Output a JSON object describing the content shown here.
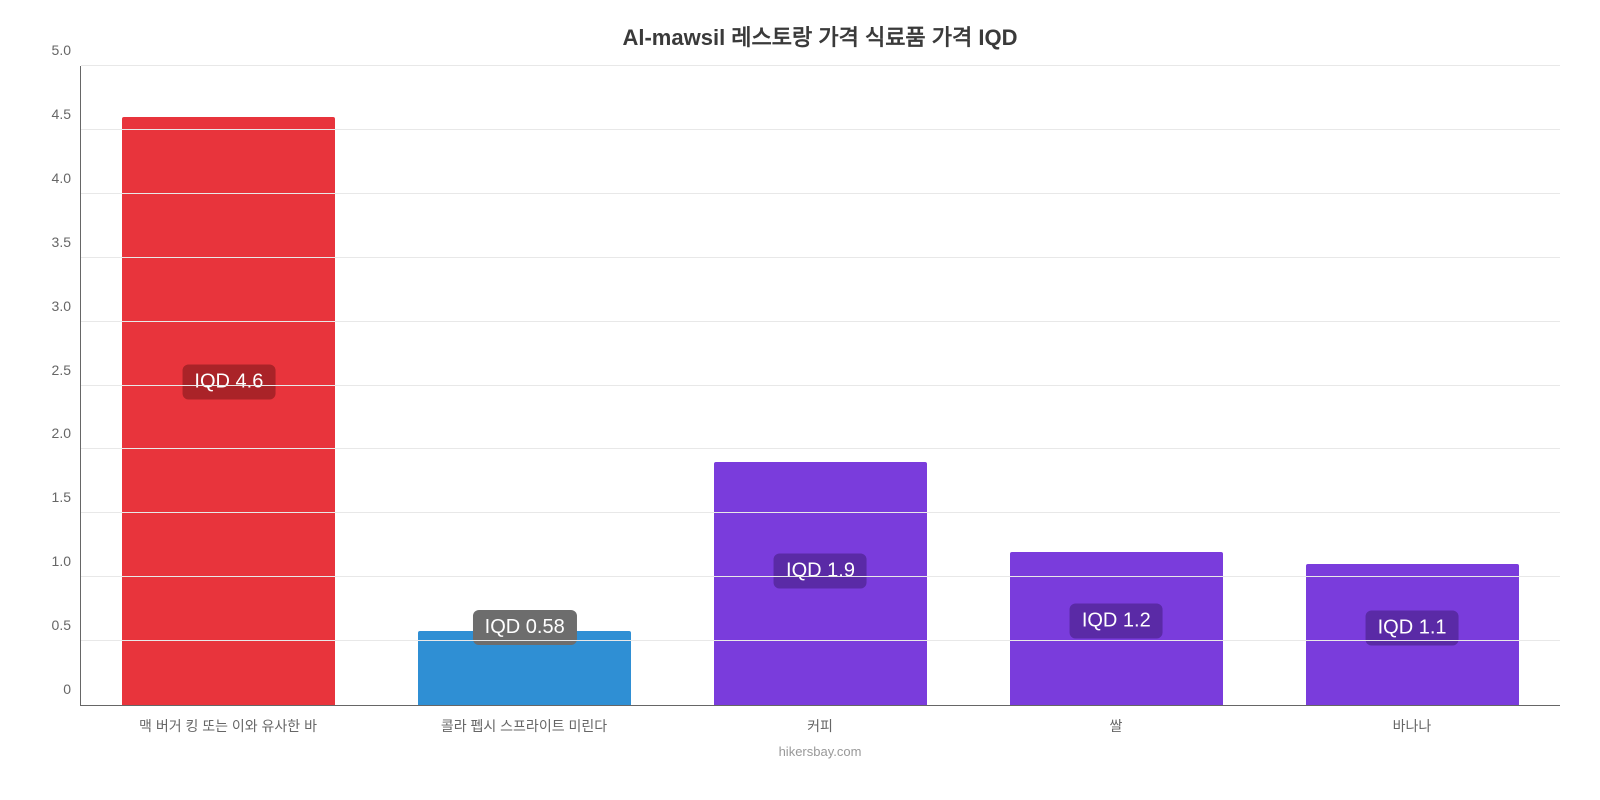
{
  "chart": {
    "type": "bar",
    "title": "Al-mawsil 레스토랑 가격 식료품 가격 IQD",
    "title_fontsize": 22,
    "title_color": "#3a3a3a",
    "background_color": "#ffffff",
    "grid_color": "#e8e8e8",
    "axis_color": "#666666",
    "ylim": [
      0,
      5.0
    ],
    "yticks": [
      0,
      0.5,
      1.0,
      1.5,
      2.0,
      2.5,
      3.0,
      3.5,
      4.0,
      4.5,
      5.0
    ],
    "ytick_labels": [
      "0",
      "0.5",
      "1.0",
      "1.5",
      "2.0",
      "2.5",
      "3.0",
      "3.5",
      "4.0",
      "4.5",
      "5.0"
    ],
    "tick_fontsize": 14,
    "tick_color": "#666666",
    "bar_width_pct": 72,
    "categories": [
      "맥 버거 킹 또는 이와 유사한 바",
      "콜라 펩시 스프라이트 미린다",
      "커피",
      "쌀",
      "바나나"
    ],
    "values": [
      4.6,
      0.58,
      1.9,
      1.2,
      1.1
    ],
    "value_labels": [
      "IQD 4.6",
      "IQD 0.58",
      "IQD 1.9",
      "IQD 1.2",
      "IQD 1.1"
    ],
    "bar_colors": [
      "#e8343c",
      "#2f8fd4",
      "#7a3cdc",
      "#7a3cdc",
      "#7a3cdc"
    ],
    "label_bg_colors": [
      "#aa2328",
      "#6d6d6d",
      "#5a2aa6",
      "#5a2aa6",
      "#5a2aa6"
    ],
    "label_fontsize": 20,
    "label_y_ratio": 0.55,
    "x_label_fontsize": 14,
    "attribution": "hikersbay.com",
    "attribution_color": "#999999",
    "attribution_fontsize": 13
  }
}
